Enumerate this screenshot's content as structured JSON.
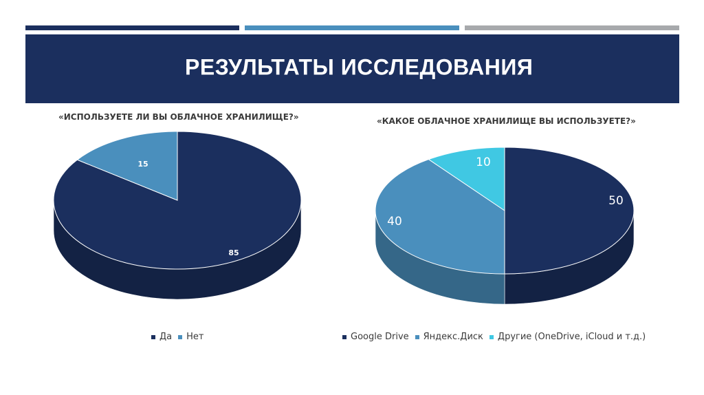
{
  "slide": {
    "title": "РЕЗУЛЬТАТЫ ИССЛЕДОВАНИЯ"
  },
  "colors": {
    "dark_navy": "#1b2f5e",
    "steel_blue": "#4a8fbd",
    "cyan": "#40c8e3",
    "grey": "#a7a9ac"
  },
  "chart_data": [
    {
      "type": "pie",
      "title": "«ИСПОЛЬЗУЕТЕ ЛИ ВЫ ОБЛАЧНОЕ ХРАНИЛИЩЕ?»",
      "categories": [
        "Да",
        "Нет"
      ],
      "values": [
        85,
        15
      ],
      "labels": [
        "85",
        "15"
      ],
      "colors": [
        "#1b2f5e",
        "#4a8fbd"
      ],
      "style": "3d",
      "legend": "bottom"
    },
    {
      "type": "pie",
      "title": "«КАКОЕ ОБЛАЧНОЕ ХРАНИЛИЩЕ ВЫ ИСПОЛЬЗУЕТЕ?»",
      "categories": [
        "Google Drive",
        "Яндекс.Диск",
        "Другие (OneDrive, iCloud и т.д.)"
      ],
      "values": [
        50,
        40,
        10
      ],
      "labels": [
        "50",
        "40",
        "10"
      ],
      "colors": [
        "#1b2f5e",
        "#4a8fbd",
        "#40c8e3"
      ],
      "style": "3d",
      "legend": "bottom"
    }
  ]
}
